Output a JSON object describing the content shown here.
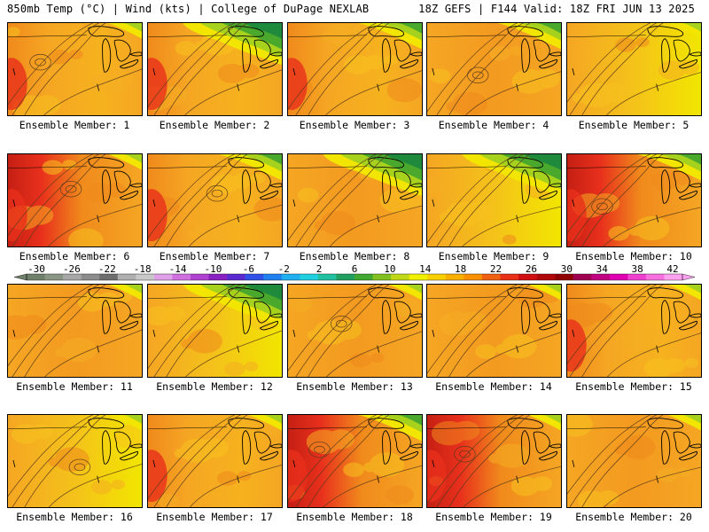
{
  "header": {
    "left": "850mb Temp (°C) | Wind (kts) | College of DuPage NEXLAB",
    "right": "18Z GEFS | F144 Valid: 18Z FRI JUN 13 2025"
  },
  "colors": {
    "warm_orange": "#f5a623",
    "hot_red": "#e8301c",
    "deep_red": "#c51f14",
    "mid_orange": "#f08a1c",
    "yellow": "#f2e600",
    "yellow_green": "#a6d21e",
    "green": "#4aa82c",
    "dark_green": "#1f8a3c",
    "teal": "#2bb59a",
    "contour": "#5a3a1a",
    "coast": "#000000"
  },
  "panels": [
    {
      "label": "Ensemble Member: 1",
      "regime": "warm-west",
      "north_cool": "low"
    },
    {
      "label": "Ensemble Member: 2",
      "regime": "warm-west",
      "north_cool": "high"
    },
    {
      "label": "Ensemble Member: 3",
      "regime": "warm-west",
      "north_cool": "medium"
    },
    {
      "label": "Ensemble Member: 4",
      "regime": "warm",
      "north_cool": "medium"
    },
    {
      "label": "Ensemble Member: 5",
      "regime": "mild",
      "north_cool": "low"
    },
    {
      "label": "Ensemble Member: 6",
      "regime": "hot-west",
      "north_cool": "low"
    },
    {
      "label": "Ensemble Member: 7",
      "regime": "warm-west",
      "north_cool": "medium"
    },
    {
      "label": "Ensemble Member: 8",
      "regime": "warm",
      "north_cool": "high"
    },
    {
      "label": "Ensemble Member: 9",
      "regime": "mild",
      "north_cool": "high"
    },
    {
      "label": "Ensemble Member: 10",
      "regime": "hot-west",
      "north_cool": "medium"
    },
    {
      "label": "Ensemble Member: 11",
      "regime": "warm",
      "north_cool": "low"
    },
    {
      "label": "Ensemble Member: 12",
      "regime": "mild",
      "north_cool": "high"
    },
    {
      "label": "Ensemble Member: 13",
      "regime": "warm",
      "north_cool": "low"
    },
    {
      "label": "Ensemble Member: 14",
      "regime": "warm",
      "north_cool": "low"
    },
    {
      "label": "Ensemble Member: 15",
      "regime": "warm-west",
      "north_cool": "low"
    },
    {
      "label": "Ensemble Member: 16",
      "regime": "mild",
      "north_cool": "low"
    },
    {
      "label": "Ensemble Member: 17",
      "regime": "warm-west",
      "north_cool": "low"
    },
    {
      "label": "Ensemble Member: 18",
      "regime": "hot-west",
      "north_cool": "medium"
    },
    {
      "label": "Ensemble Member: 19",
      "regime": "hot-west",
      "north_cool": "low"
    },
    {
      "label": "Ensemble Member: 20",
      "regime": "warm",
      "north_cool": "low"
    }
  ],
  "colorbar": {
    "ticks": [
      "-30",
      "-26",
      "-22",
      "-18",
      "-14",
      "-10",
      "-6",
      "-2",
      "2",
      "6",
      "10",
      "14",
      "18",
      "22",
      "26",
      "30",
      "34",
      "38",
      "42"
    ],
    "bins": [
      "#6e7f6a",
      "#8a9583",
      "#a7a7a7",
      "#8c8c8c",
      "#6e6e6e",
      "#b0b0b0",
      "#c8c8c8",
      "#e0a0e8",
      "#d070e0",
      "#b040d0",
      "#8a20c0",
      "#5a2ad0",
      "#3050e8",
      "#2080f0",
      "#20b0f0",
      "#20d0e0",
      "#20c0a0",
      "#20a060",
      "#40a830",
      "#80c020",
      "#c0d818",
      "#f0f000",
      "#f8d000",
      "#f8b000",
      "#f89000",
      "#f06010",
      "#e83018",
      "#d01010",
      "#b00808",
      "#900000",
      "#a00050",
      "#c00080",
      "#e000b0",
      "#f040d0",
      "#f870e0",
      "#fca0f0"
    ]
  }
}
